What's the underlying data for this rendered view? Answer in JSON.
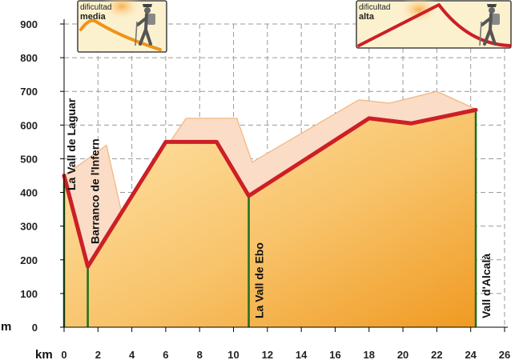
{
  "chart_data": {
    "type": "area",
    "title": "",
    "xlabel": "km",
    "ylabel": "m",
    "xlim": [
      0,
      26
    ],
    "ylim": [
      0,
      900
    ],
    "x_ticks": [
      0,
      2,
      4,
      6,
      8,
      10,
      12,
      14,
      16,
      18,
      20,
      22,
      24,
      26
    ],
    "y_ticks": [
      0,
      100,
      200,
      300,
      400,
      500,
      600,
      700,
      800,
      900
    ],
    "grid": true,
    "series": [
      {
        "values": [
          {
            "x": 0,
            "y": 450
          },
          {
            "x": 1.4,
            "y": 180
          },
          {
            "x": 6,
            "y": 550
          },
          {
            "x": 9,
            "y": 550
          },
          {
            "x": 10.9,
            "y": 390
          },
          {
            "x": 18,
            "y": 620
          },
          {
            "x": 20.5,
            "y": 605
          },
          {
            "x": 24.3,
            "y": 645
          }
        ]
      }
    ],
    "shadow_profile": [
      {
        "x": 0,
        "y": 450
      },
      {
        "x": 1.4,
        "y": 500
      },
      {
        "x": 2.5,
        "y": 540
      },
      {
        "x": 3.4,
        "y": 340
      },
      {
        "x": 7.2,
        "y": 620
      },
      {
        "x": 10.2,
        "y": 620
      },
      {
        "x": 11.1,
        "y": 490
      },
      {
        "x": 17.4,
        "y": 675
      },
      {
        "x": 19.2,
        "y": 665
      },
      {
        "x": 22,
        "y": 700
      },
      {
        "x": 24.4,
        "y": 645
      }
    ],
    "waypoints": [
      {
        "label": "La Vall de Laguar",
        "x": 0,
        "y": 450
      },
      {
        "label": "Barranco de l'Infern",
        "x": 1.4,
        "y": 180
      },
      {
        "label": "La Vall de Ebo",
        "x": 10.9,
        "y": 390
      },
      {
        "label": "Vall d'Alcalà",
        "x": 24.3,
        "y": 645
      }
    ],
    "colors": {
      "profile_line": "#cc1f26",
      "area_light": "#ffe2a3",
      "area_dark": "#f2a12a",
      "shadow_fill": "#fbdcc6",
      "shadow_line": "#f1b884",
      "marker_line": "#1e6e1e",
      "grid": "#9a9a9a"
    }
  },
  "difficulty_badges": [
    {
      "small": "dificultad",
      "big": "media",
      "accent": "#ee9419",
      "icon": "hiker-icon"
    },
    {
      "small": "dificultad",
      "big": "alta",
      "accent": "#cc1f26",
      "icon": "hiker-icon"
    }
  ]
}
